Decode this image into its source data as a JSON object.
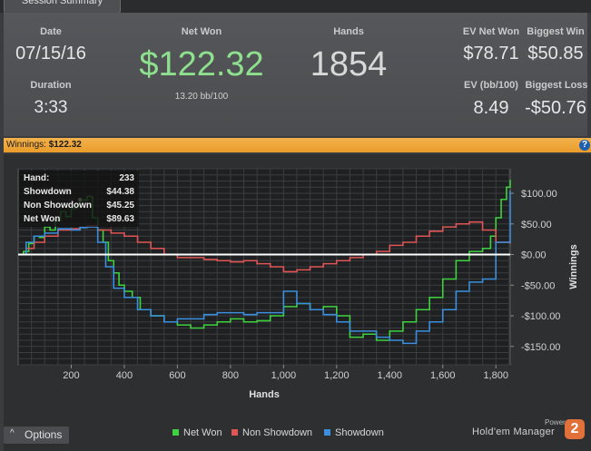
{
  "tab": {
    "label": "Session Summary"
  },
  "summary": {
    "date_label": "Date",
    "date_value": "07/15/16",
    "duration_label": "Duration",
    "duration_value": "3:33",
    "net_won_label": "Net Won",
    "net_won_value": "$122.32",
    "bb_per_100": "13.20 bb/100",
    "hands_label": "Hands",
    "hands_value": "1854",
    "ev_net_won_label": "EV Net Won",
    "ev_net_won_value": "$78.71",
    "biggest_win_label": "Biggest Win",
    "biggest_win_value": "$50.85",
    "ev_bb_label": "EV (bb/100)",
    "ev_bb_value": "8.49",
    "biggest_loss_label": "Biggest Loss",
    "biggest_loss_value": "-$50.76"
  },
  "winnings_bar": {
    "label": "Winnings:",
    "value": "$122.32",
    "help_icon": "?"
  },
  "tooltip": {
    "rows": [
      {
        "label": "Hand:",
        "value": "233"
      },
      {
        "label": "Showdown",
        "value": "$44.38"
      },
      {
        "label": "Non Showdown",
        "value": "$45.25"
      },
      {
        "label": "Net Won",
        "value": "$89.63"
      }
    ]
  },
  "chart_data": {
    "type": "line",
    "xlabel": "Hands",
    "ylabel": "Winnings",
    "xlim": [
      0,
      1854
    ],
    "ylim": [
      -180,
      140
    ],
    "x_ticks": [
      200,
      400,
      600,
      800,
      1000,
      1200,
      1400,
      1600,
      1800
    ],
    "x_tick_labels": [
      "200",
      "400",
      "600",
      "800",
      "1,000",
      "1,200",
      "1,400",
      "1,600",
      "1,800"
    ],
    "y_ticks": [
      100,
      50,
      0,
      -50,
      -100,
      -150
    ],
    "y_tick_labels": [
      "$100.00",
      "$50.00",
      "$0.00",
      "-$50.00",
      "-$100.00",
      "-$150.00"
    ],
    "grid": true,
    "legend_position": "bottom",
    "series": [
      {
        "name": "Net Won",
        "color": "#3fd23f",
        "x": [
          0,
          20,
          40,
          60,
          80,
          100,
          120,
          140,
          160,
          180,
          200,
          220,
          233,
          260,
          280,
          300,
          320,
          340,
          360,
          380,
          400,
          430,
          460,
          500,
          550,
          600,
          650,
          700,
          750,
          800,
          850,
          900,
          950,
          1000,
          1050,
          1100,
          1150,
          1200,
          1250,
          1300,
          1350,
          1400,
          1450,
          1500,
          1550,
          1600,
          1650,
          1700,
          1750,
          1780,
          1800,
          1820,
          1840,
          1854
        ],
        "y": [
          0,
          5,
          18,
          30,
          28,
          45,
          40,
          55,
          70,
          62,
          75,
          82,
          89,
          95,
          60,
          40,
          20,
          -10,
          -30,
          -50,
          -60,
          -70,
          -90,
          -100,
          -110,
          -115,
          -120,
          -115,
          -110,
          -105,
          -110,
          -108,
          -100,
          -85,
          -80,
          -90,
          -85,
          -100,
          -135,
          -130,
          -140,
          -125,
          -110,
          -90,
          -70,
          -40,
          -10,
          5,
          10,
          30,
          60,
          90,
          110,
          122
        ]
      },
      {
        "name": "Non Showdown",
        "color": "#e05555",
        "x": [
          0,
          30,
          60,
          100,
          150,
          200,
          233,
          260,
          300,
          350,
          400,
          450,
          500,
          550,
          600,
          650,
          700,
          750,
          800,
          850,
          900,
          950,
          1000,
          1050,
          1100,
          1150,
          1200,
          1250,
          1300,
          1350,
          1400,
          1450,
          1500,
          1550,
          1600,
          1650,
          1700,
          1750,
          1800,
          1854
        ],
        "y": [
          0,
          10,
          20,
          30,
          40,
          42,
          45,
          47,
          40,
          35,
          30,
          20,
          10,
          0,
          -5,
          -5,
          -8,
          -10,
          -12,
          -10,
          -15,
          -20,
          -28,
          -25,
          -20,
          -15,
          -10,
          -5,
          0,
          5,
          15,
          20,
          30,
          38,
          45,
          50,
          53,
          40,
          20,
          18
        ]
      },
      {
        "name": "Showdown",
        "color": "#3a8fde",
        "x": [
          0,
          30,
          60,
          100,
          150,
          200,
          233,
          260,
          300,
          330,
          360,
          400,
          450,
          500,
          550,
          600,
          650,
          700,
          750,
          800,
          850,
          900,
          950,
          1000,
          1050,
          1100,
          1150,
          1200,
          1250,
          1300,
          1350,
          1400,
          1450,
          1500,
          1550,
          1600,
          1650,
          1700,
          1750,
          1800,
          1854
        ],
        "y": [
          0,
          20,
          30,
          35,
          42,
          40,
          44,
          45,
          20,
          -20,
          -55,
          -70,
          -90,
          -100,
          -110,
          -105,
          -105,
          -98,
          -95,
          -95,
          -98,
          -95,
          -95,
          -60,
          -80,
          -90,
          -98,
          -110,
          -125,
          -125,
          -135,
          -140,
          -145,
          -125,
          -110,
          -90,
          -60,
          -45,
          -40,
          20,
          104
        ]
      }
    ]
  },
  "options": {
    "label": "Options",
    "caret": "^"
  },
  "brand": {
    "powered": "Powered by",
    "name": "Hold'em Manager",
    "logo": "2"
  }
}
